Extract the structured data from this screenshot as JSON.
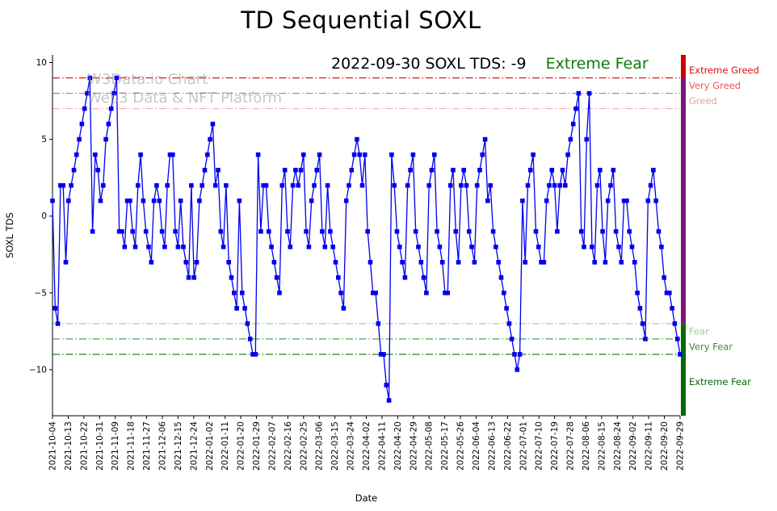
{
  "watermark": {
    "line1": "W3Data.io Chart",
    "line2": "Web3 Data & NFT Platform"
  },
  "chart_data": {
    "type": "line",
    "title": "TD Sequential SOXL",
    "xlabel": "Date",
    "ylabel": "SOXL TDS",
    "ylim": [
      -13,
      10.5
    ],
    "y_ticks": [
      10,
      5,
      0,
      -5,
      -10
    ],
    "x_tick_labels": [
      "2021-10-04",
      "2021-10-13",
      "2021-10-22",
      "2021-10-31",
      "2021-11-09",
      "2021-11-18",
      "2021-11-27",
      "2021-12-06",
      "2021-12-15",
      "2021-12-24",
      "2022-01-02",
      "2022-01-11",
      "2022-01-20",
      "2022-01-29",
      "2022-02-07",
      "2022-02-16",
      "2022-02-25",
      "2022-03-06",
      "2022-03-15",
      "2022-03-24",
      "2022-04-02",
      "2022-04-11",
      "2022-04-20",
      "2022-04-29",
      "2022-05-08",
      "2022-05-17",
      "2022-05-26",
      "2022-06-04",
      "2022-06-13",
      "2022-06-22",
      "2022-07-01",
      "2022-07-10",
      "2022-07-19",
      "2022-07-28",
      "2022-08-06",
      "2022-08-15",
      "2022-08-24",
      "2022-09-02",
      "2022-09-11",
      "2022-09-20",
      "2022-09-29"
    ],
    "series": [
      {
        "name": "SOXL TDS",
        "color": "#0000ee",
        "marker": "square",
        "values": [
          1,
          -6,
          -7,
          2,
          2,
          -3,
          1,
          2,
          3,
          4,
          5,
          6,
          7,
          8,
          9,
          -1,
          4,
          3,
          1,
          2,
          5,
          6,
          7,
          8,
          9,
          -1,
          -1,
          -2,
          1,
          1,
          -1,
          -2,
          2,
          4,
          1,
          -1,
          -2,
          -3,
          1,
          2,
          1,
          -1,
          -2,
          2,
          4,
          4,
          -1,
          -2,
          1,
          -2,
          -3,
          -4,
          2,
          -4,
          -3,
          1,
          2,
          3,
          4,
          5,
          6,
          2,
          3,
          -1,
          -2,
          2,
          -3,
          -4,
          -5,
          -6,
          1,
          -5,
          -6,
          -7,
          -8,
          -9,
          -9,
          4,
          -1,
          2,
          2,
          -1,
          -2,
          -3,
          -4,
          -5,
          2,
          3,
          -1,
          -2,
          2,
          3,
          2,
          3,
          4,
          -1,
          -2,
          1,
          2,
          3,
          4,
          -1,
          -2,
          2,
          -1,
          -2,
          -3,
          -4,
          -5,
          -6,
          1,
          2,
          3,
          4,
          5,
          4,
          2,
          4,
          -1,
          -3,
          -5,
          -5,
          -7,
          -9,
          -9,
          -11,
          -12,
          4,
          2,
          -1,
          -2,
          -3,
          -4,
          2,
          3,
          4,
          -1,
          -2,
          -3,
          -4,
          -5,
          2,
          3,
          4,
          -1,
          -2,
          -3,
          -5,
          -5,
          2,
          3,
          -1,
          -3,
          2,
          3,
          2,
          -1,
          -2,
          -3,
          2,
          3,
          4,
          5,
          1,
          2,
          -1,
          -2,
          -3,
          -4,
          -5,
          -6,
          -7,
          -8,
          -9,
          -10,
          -9,
          1,
          -3,
          2,
          3,
          4,
          -1,
          -2,
          -3,
          -3,
          1,
          2,
          3,
          2,
          -1,
          2,
          3,
          2,
          4,
          5,
          6,
          7,
          8,
          -1,
          -2,
          5,
          8,
          -2,
          -3,
          2,
          3,
          -1,
          -3,
          1,
          2,
          3,
          -1,
          -2,
          -3,
          1,
          1,
          -1,
          -2,
          -3,
          -5,
          -6,
          -7,
          -8,
          1,
          2,
          3,
          1,
          -1,
          -2,
          -4,
          -5,
          -5,
          -6,
          -7,
          -8,
          -9
        ]
      }
    ],
    "thresholds": [
      {
        "label": "Extreme Greed",
        "value": 9,
        "line_color": "#dd1111",
        "label_color": "#dd1111",
        "label_value": 9.5
      },
      {
        "label": "Very Greed",
        "value": 8,
        "line_color": "#ee6666",
        "label_color": "#ee5555",
        "label_value": 8.5
      },
      {
        "label": "Greed",
        "value": 7,
        "line_color": "#f5abab",
        "label_color": "#f2a0a0",
        "label_value": 7.5
      },
      {
        "label": "Fear",
        "value": -7,
        "line_color": "#a2d2a2",
        "label_color": "#99cc99",
        "label_value": -7.5
      },
      {
        "label": "Very Fear",
        "value": -8,
        "line_color": "#55a055",
        "label_color": "#3d8b3d",
        "label_value": -8.5
      },
      {
        "label": "Extreme Fear",
        "value": -9,
        "line_color": "#0b6e0b",
        "label_color": "#066606",
        "label_value": -10.8
      }
    ],
    "colorbar": {
      "side": "right",
      "segments": [
        {
          "from": 10.5,
          "to": 9,
          "color": "#cc0000"
        },
        {
          "from": 9,
          "to": -7,
          "color": "#7a157a"
        },
        {
          "from": -7,
          "to": -13,
          "color": "#0a6a0a"
        }
      ]
    },
    "annotation": {
      "text": "2022-09-30 SOXL TDS: -9",
      "sentiment": "Extreme Fear",
      "sentiment_color": "#0e7a0e"
    },
    "grid": false,
    "legend": "none"
  }
}
